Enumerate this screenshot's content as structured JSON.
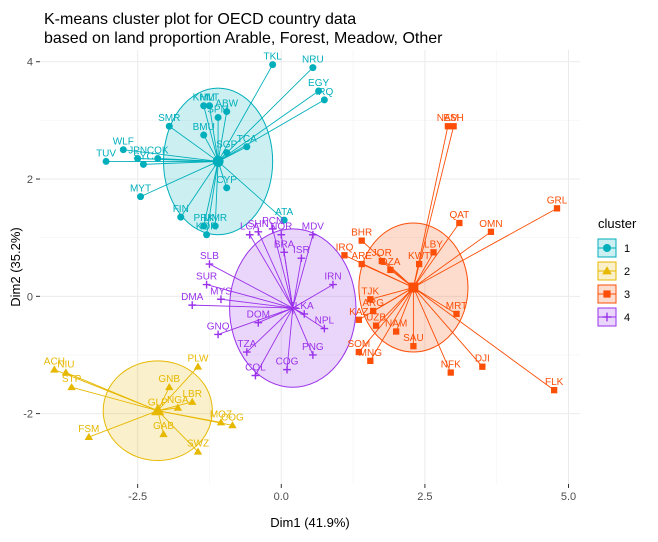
{
  "chart_data": {
    "type": "scatter",
    "title_lines": [
      "K-means cluster plot for OECD country data",
      "based on land proportion Arable, Forest, Meadow, Other"
    ],
    "xlabel": "Dim1 (41.9%)",
    "ylabel": "Dim2 (35.2%)",
    "xlim": [
      -4.2,
      5.2
    ],
    "ylim": [
      -3.2,
      4.2
    ],
    "xticks": [
      -2.5,
      0.0,
      2.5,
      5.0
    ],
    "xtick_labels": [
      "-2.5",
      "0.0",
      "2.5",
      "5.0"
    ],
    "yticks": [
      -2,
      0,
      2,
      4
    ],
    "ytick_labels": [
      "-2",
      "0",
      "2",
      "4"
    ],
    "grid": true,
    "legend_title": "cluster",
    "legend_position": "right",
    "clusters": [
      {
        "name": "1",
        "color": "#00AFBB",
        "marker": "circle",
        "center": [
          -1.1,
          2.3
        ],
        "hull_radius": [
          0.95,
          1.25
        ],
        "points": [
          {
            "label": "TKL",
            "x": -0.15,
            "y": 3.95
          },
          {
            "label": "NRU",
            "x": 0.55,
            "y": 3.9
          },
          {
            "label": "EGY",
            "x": 0.65,
            "y": 3.5
          },
          {
            "label": "IRQ",
            "x": 0.75,
            "y": 3.35
          },
          {
            "label": "KHM",
            "x": -1.35,
            "y": 3.25
          },
          {
            "label": "MLT",
            "x": -1.25,
            "y": 3.25
          },
          {
            "label": "ABW",
            "x": -0.95,
            "y": 3.15
          },
          {
            "label": "SPM",
            "x": -1.1,
            "y": 3.05
          },
          {
            "label": "SMR",
            "x": -1.95,
            "y": 2.9
          },
          {
            "label": "BMU",
            "x": -1.35,
            "y": 2.75
          },
          {
            "label": "TCA",
            "x": -0.6,
            "y": 2.55
          },
          {
            "label": "SGP",
            "x": -0.95,
            "y": 2.45
          },
          {
            "label": "WLF",
            "x": -2.75,
            "y": 2.5
          },
          {
            "label": "COK",
            "x": -2.15,
            "y": 2.35
          },
          {
            "label": "JPN",
            "x": -2.5,
            "y": 2.35
          },
          {
            "label": "TUV",
            "x": -3.05,
            "y": 2.3
          },
          {
            "label": "SYC",
            "x": -2.4,
            "y": 2.25
          },
          {
            "label": "CYP",
            "x": -0.95,
            "y": 1.85
          },
          {
            "label": "MYT",
            "x": -2.45,
            "y": 1.7
          },
          {
            "label": "ATA",
            "x": 0.05,
            "y": 1.3
          },
          {
            "label": "FIN",
            "x": -1.75,
            "y": 1.35
          },
          {
            "label": "PRK",
            "x": -1.35,
            "y": 1.2
          },
          {
            "label": "MMR",
            "x": -1.15,
            "y": 1.2
          },
          {
            "label": "KOR",
            "x": -1.3,
            "y": 1.05
          }
        ]
      },
      {
        "name": "2",
        "color": "#E7B800",
        "marker": "triangle",
        "center": [
          -2.15,
          -1.95
        ],
        "hull_radius": [
          0.95,
          0.85
        ],
        "points": [
          {
            "label": "ACH",
            "x": -3.95,
            "y": -1.25
          },
          {
            "label": "NIU",
            "x": -3.75,
            "y": -1.3
          },
          {
            "label": "STP",
            "x": -3.65,
            "y": -1.55
          },
          {
            "label": "PLW",
            "x": -1.45,
            "y": -1.2
          },
          {
            "label": "GNB",
            "x": -1.95,
            "y": -1.55
          },
          {
            "label": "LBR",
            "x": -1.55,
            "y": -1.8
          },
          {
            "label": "NGA",
            "x": -1.8,
            "y": -1.9
          },
          {
            "label": "MOZ",
            "x": -1.05,
            "y": -2.15
          },
          {
            "label": "COG",
            "x": -0.85,
            "y": -2.2
          },
          {
            "label": "FSM",
            "x": -3.35,
            "y": -2.4
          },
          {
            "label": "GAB",
            "x": -2.05,
            "y": -2.35
          },
          {
            "label": "SWZ",
            "x": -1.45,
            "y": -2.65
          },
          {
            "label": "GLP",
            "x": -2.15,
            "y": -1.95
          }
        ]
      },
      {
        "name": "3",
        "color": "#FC4E07",
        "marker": "square",
        "center": [
          2.3,
          0.15
        ],
        "hull_radius": [
          0.95,
          1.1
        ],
        "points": [
          {
            "label": "NAM",
            "x": 2.9,
            "y": 2.9
          },
          {
            "label": "ESH",
            "x": 3.0,
            "y": 2.9
          },
          {
            "label": "GRL",
            "x": 4.8,
            "y": 1.5
          },
          {
            "label": "QAT",
            "x": 3.1,
            "y": 1.25
          },
          {
            "label": "OMN",
            "x": 3.65,
            "y": 1.1
          },
          {
            "label": "BHR",
            "x": 1.4,
            "y": 0.95
          },
          {
            "label": "LBY",
            "x": 2.65,
            "y": 0.75
          },
          {
            "label": "IRQ",
            "x": 1.1,
            "y": 0.7
          },
          {
            "label": "KWT",
            "x": 2.4,
            "y": 0.55
          },
          {
            "label": "JOR",
            "x": 1.75,
            "y": 0.6
          },
          {
            "label": "ARE",
            "x": 1.4,
            "y": 0.55
          },
          {
            "label": "DZA",
            "x": 1.9,
            "y": 0.45
          },
          {
            "label": "MRT",
            "x": 3.05,
            "y": -0.3
          },
          {
            "label": "TJK",
            "x": 1.55,
            "y": -0.05
          },
          {
            "label": "ARG",
            "x": 1.6,
            "y": -0.25
          },
          {
            "label": "KAZ",
            "x": 1.35,
            "y": -0.4
          },
          {
            "label": "UZB",
            "x": 1.65,
            "y": -0.5
          },
          {
            "label": "NAM",
            "x": 2.0,
            "y": -0.6
          },
          {
            "label": "SAU",
            "x": 2.3,
            "y": -0.85
          },
          {
            "label": "SOM",
            "x": 1.35,
            "y": -0.95
          },
          {
            "label": "MNG",
            "x": 1.55,
            "y": -1.1
          },
          {
            "label": "NFK",
            "x": 2.95,
            "y": -1.3
          },
          {
            "label": "DJI",
            "x": 3.5,
            "y": -1.2
          },
          {
            "label": "FLK",
            "x": 4.75,
            "y": -1.6
          }
        ]
      },
      {
        "name": "4",
        "color": "#9A32EB",
        "marker": "cross",
        "center": [
          0.2,
          -0.2
        ],
        "hull_radius": [
          1.1,
          1.35
        ],
        "points": [
          {
            "label": "LCA",
            "x": -0.55,
            "y": 1.05
          },
          {
            "label": "SHN",
            "x": -0.4,
            "y": 1.1
          },
          {
            "label": "PCN",
            "x": -0.15,
            "y": 1.15
          },
          {
            "label": "NOR",
            "x": 0.0,
            "y": 1.05
          },
          {
            "label": "MDV",
            "x": 0.55,
            "y": 1.05
          },
          {
            "label": "BRA",
            "x": 0.05,
            "y": 0.75
          },
          {
            "label": "ISR",
            "x": 0.35,
            "y": 0.65
          },
          {
            "label": "SLB",
            "x": -1.25,
            "y": 0.55
          },
          {
            "label": "IRN",
            "x": 0.9,
            "y": 0.2
          },
          {
            "label": "SUR",
            "x": -1.3,
            "y": 0.2
          },
          {
            "label": "DMA",
            "x": -1.55,
            "y": -0.15
          },
          {
            "label": "MYS",
            "x": -1.05,
            "y": -0.05
          },
          {
            "label": "GNQ",
            "x": -1.1,
            "y": -0.65
          },
          {
            "label": "TZA",
            "x": -0.6,
            "y": -0.95
          },
          {
            "label": "COL",
            "x": -0.45,
            "y": -1.35
          },
          {
            "label": "COG",
            "x": 0.1,
            "y": -1.25
          },
          {
            "label": "PNG",
            "x": 0.55,
            "y": -1.0
          },
          {
            "label": "NPL",
            "x": 0.75,
            "y": -0.55
          },
          {
            "label": "DOM",
            "x": -0.4,
            "y": -0.45
          },
          {
            "label": "LKA",
            "x": 0.4,
            "y": -0.3
          }
        ]
      }
    ]
  }
}
